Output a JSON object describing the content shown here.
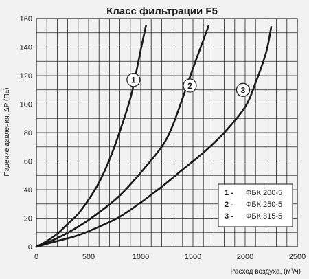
{
  "chart_data": {
    "type": "line",
    "title": "Класс фильтрации F5",
    "xlabel": "Расход воздуха, (м³/ч)",
    "ylabel": "Падение давления, ΔP (Па)",
    "xlim": [
      0,
      2500
    ],
    "ylim": [
      0,
      160
    ],
    "x_ticks": [
      0,
      500,
      1000,
      1500,
      2000,
      2500
    ],
    "y_ticks": [
      0,
      20,
      40,
      60,
      80,
      100,
      120,
      140,
      160
    ],
    "grid": true,
    "grid_step_x": 100,
    "grid_step_y": 10,
    "legend_position": "bottom-right",
    "series": [
      {
        "name": "ФБК 200-5",
        "marker": "1",
        "legend_num": "1 -",
        "x": [
          0,
          100,
          200,
          300,
          400,
          500,
          600,
          700,
          800,
          900,
          950,
          1000,
          1050
        ],
        "y": [
          0,
          4,
          9,
          16,
          23,
          33,
          45,
          61,
          81,
          104,
          120,
          138,
          155
        ]
      },
      {
        "name": "ФБК 250-5",
        "marker": "2",
        "legend_num": "2 -",
        "x": [
          0,
          200,
          400,
          600,
          800,
          1000,
          1200,
          1300,
          1400,
          1500,
          1600,
          1650
        ],
        "y": [
          0,
          6,
          14,
          24,
          36,
          52,
          70,
          84,
          104,
          125,
          145,
          155
        ]
      },
      {
        "name": "ФБК 315-5",
        "marker": "3",
        "legend_num": "3 -",
        "x": [
          0,
          200,
          400,
          600,
          800,
          1000,
          1200,
          1400,
          1600,
          1800,
          2000,
          2100,
          2200,
          2250
        ],
        "y": [
          0,
          4,
          8,
          14,
          21,
          31,
          42,
          54,
          66,
          80,
          98,
          115,
          136,
          154
        ]
      }
    ],
    "markers_at": [
      {
        "series": 0,
        "x": 930,
        "y": 117
      },
      {
        "series": 1,
        "x": 1470,
        "y": 113
      },
      {
        "series": 2,
        "x": 1980,
        "y": 110
      }
    ],
    "colors": {
      "background": "#f2f2f2",
      "grid": "#222222",
      "line": "#1a1a1a",
      "legend_background": "#ffffff"
    }
  }
}
